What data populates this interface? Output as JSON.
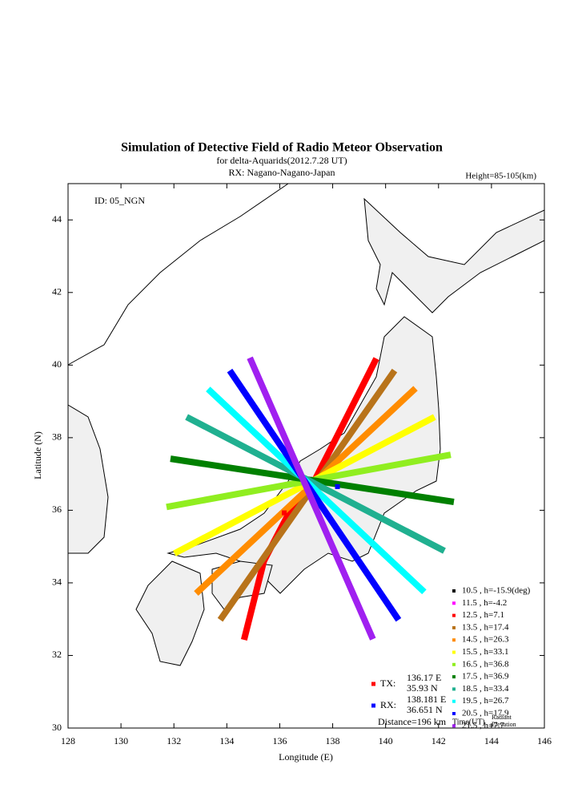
{
  "chart_data": {
    "type": "map",
    "title": "Simulation of Detective Field of Radio Meteor Observation",
    "subtitle": "for delta-Aquarids(2012.7.28 UT)",
    "rx_site": "RX: Nagano-Nagano-Japan",
    "height_note": "Height=85-105(km)",
    "id_label": "ID: 05_NGN",
    "xlabel": "Longitude (E)",
    "ylabel": "Latitude (N)",
    "xlim": [
      128,
      146
    ],
    "ylim": [
      30,
      45
    ],
    "xticks": [
      128,
      130,
      132,
      134,
      136,
      138,
      140,
      142,
      144,
      146
    ],
    "yticks": [
      30,
      32,
      34,
      36,
      38,
      40,
      42,
      44
    ],
    "series": [
      {
        "name": "10.5 , h=-15.9(deg)",
        "color": "#000000",
        "x": [],
        "y": []
      },
      {
        "name": "11.5 , h=-4.2",
        "color": "#ff00ff",
        "x": [
          137.1,
          137.3
        ],
        "y": [
          36.9,
          36.5
        ]
      },
      {
        "name": "12.5 , h=7.1",
        "color": "#ff0000",
        "x": [
          139.65,
          138.0,
          137.3,
          136.4,
          135.4,
          134.65
        ],
        "y": [
          40.18,
          37.8,
          36.8,
          36.0,
          34.6,
          32.43
        ]
      },
      {
        "name": "13.5 , h=17.4",
        "color": "#b8731a",
        "x": [
          140.34,
          133.75
        ],
        "y": [
          39.85,
          32.98
        ]
      },
      {
        "name": "14.5 , h=26.3",
        "color": "#ff8c00",
        "x": [
          141.13,
          132.84
        ],
        "y": [
          39.36,
          33.71
        ]
      },
      {
        "name": "15.5 , h=33.1",
        "color": "#ffff00",
        "x": [
          141.85,
          132.02
        ],
        "y": [
          38.57,
          34.81
        ]
      },
      {
        "name": "16.5 , h=36.8",
        "color": "#90ee20",
        "x": [
          142.46,
          131.72
        ],
        "y": [
          37.53,
          36.09
        ]
      },
      {
        "name": "17.5 , h=36.9",
        "color": "#008000",
        "x": [
          131.87,
          142.58
        ],
        "y": [
          37.42,
          36.23
        ]
      },
      {
        "name": "18.5 , h=33.4",
        "color": "#20b090",
        "x": [
          132.48,
          142.22
        ],
        "y": [
          38.57,
          34.88
        ]
      },
      {
        "name": "19.5 , h=26.7",
        "color": "#00ffff",
        "x": [
          133.29,
          141.46
        ],
        "y": [
          39.34,
          33.75
        ]
      },
      {
        "name": "20.5 , h=17.9",
        "color": "#0000ff",
        "x": [
          134.11,
          140.49
        ],
        "y": [
          39.85,
          32.98
        ]
      },
      {
        "name": "21.5 , h=7.7",
        "color": "#a020f0",
        "x": [
          134.87,
          139.52
        ],
        "y": [
          40.2,
          32.45
        ]
      }
    ],
    "tx": {
      "label": "TX:",
      "lon": 136.17,
      "lon_label": "136.17 E",
      "lat": 35.93,
      "lat_label": "35.93 N",
      "color": "#ff0000"
    },
    "rx": {
      "label": "RX:",
      "lon": 138.181,
      "lon_label": "138.181 E",
      "lat": 36.651,
      "lat_label": "36.651 N",
      "color": "#0000ff"
    },
    "distance": "Distance=196 km",
    "legend_footer": [
      "Time(UT)",
      "Radiant",
      "Elevation"
    ]
  }
}
